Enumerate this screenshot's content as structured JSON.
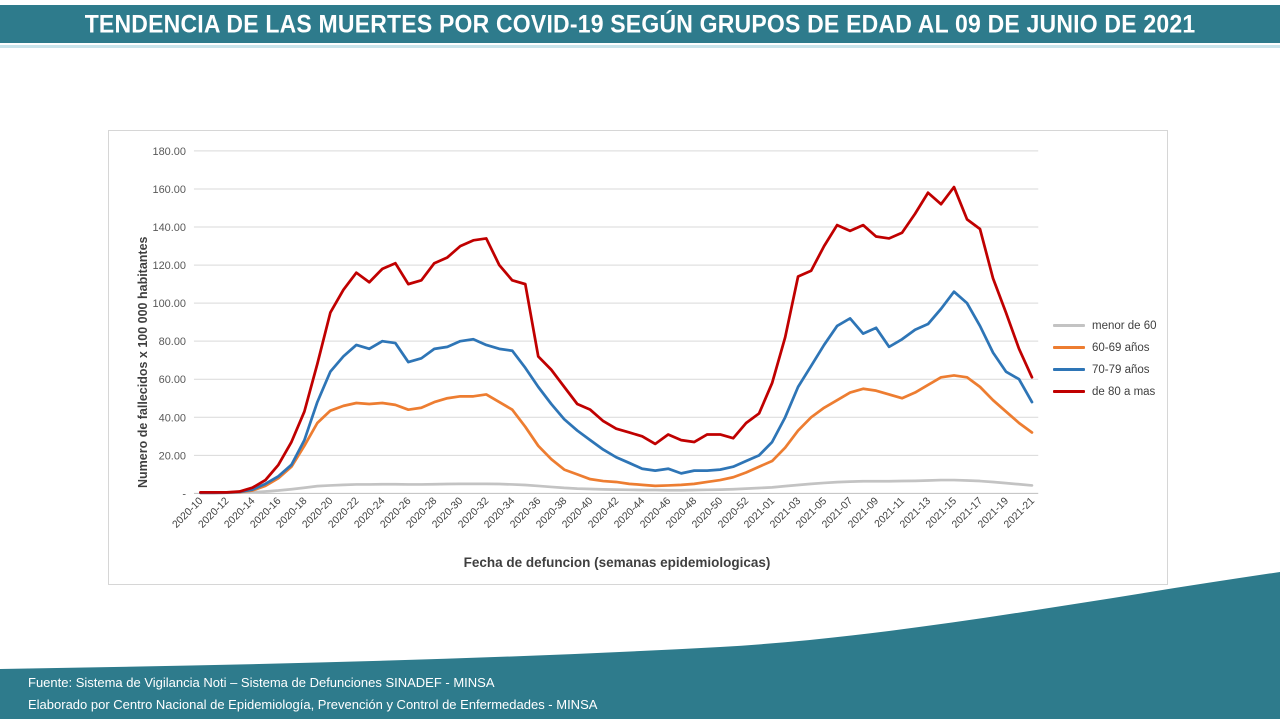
{
  "header": {
    "title": "TENDENCIA DE LAS MUERTES POR COVID-19 SEGÚN GRUPOS DE EDAD AL 09 DE JUNIO DE 2021"
  },
  "footer": {
    "line1": "Fuente: Sistema de Vigilancia Noti – Sistema de Defunciones SINADEF - MINSA",
    "line2": "Elaborado por Centro Nacional de Epidemiología, Prevención y Control de Enfermedades - MINSA"
  },
  "colors": {
    "teal": "#2E7B8C",
    "teal_light": "#C9E4EB",
    "gridline": "#D9D9D9",
    "axis_line": "#BFBFBF",
    "axis_tick_text": "#595959",
    "x_tick_text": "#404040",
    "axis_title_text": "#3F3F3F",
    "panel_border": "#D6D6D6"
  },
  "chart_data": {
    "type": "line",
    "title": "",
    "xlabel": "Fecha de defuncion (semanas epidemiologicas)",
    "ylabel": "Numero de fallecidos x 100 000 habitantes",
    "ylim": [
      0,
      180
    ],
    "y_tick_step": 20,
    "y_tick_labels": [
      "-",
      "20.00",
      "40.00",
      "60.00",
      "80.00",
      "100.00",
      "120.00",
      "140.00",
      "160.00",
      "180.00"
    ],
    "grid": true,
    "legend_position": "right",
    "x_tick_every": 2,
    "categories": [
      "2020-10",
      "2020-11",
      "2020-12",
      "2020-13",
      "2020-14",
      "2020-15",
      "2020-16",
      "2020-17",
      "2020-18",
      "2020-19",
      "2020-20",
      "2020-21",
      "2020-22",
      "2020-23",
      "2020-24",
      "2020-25",
      "2020-26",
      "2020-27",
      "2020-28",
      "2020-29",
      "2020-30",
      "2020-31",
      "2020-32",
      "2020-33",
      "2020-34",
      "2020-35",
      "2020-36",
      "2020-37",
      "2020-38",
      "2020-39",
      "2020-40",
      "2020-41",
      "2020-42",
      "2020-43",
      "2020-44",
      "2020-45",
      "2020-46",
      "2020-47",
      "2020-48",
      "2020-49",
      "2020-50",
      "2020-51",
      "2020-52",
      "2020-53",
      "2021-01",
      "2021-02",
      "2021-03",
      "2021-04",
      "2021-05",
      "2021-06",
      "2021-07",
      "2021-08",
      "2021-09",
      "2021-10",
      "2021-11",
      "2021-12",
      "2021-13",
      "2021-14",
      "2021-15",
      "2021-16",
      "2021-17",
      "2021-18",
      "2021-19",
      "2021-20",
      "2021-21"
    ],
    "series": [
      {
        "name": "menor de 60",
        "color": "#C3C3C3",
        "values": [
          0.2,
          0.2,
          0.3,
          0.4,
          0.6,
          1,
          1.5,
          2.2,
          3,
          3.8,
          4.2,
          4.5,
          4.7,
          4.7,
          4.8,
          4.8,
          4.7,
          4.7,
          4.8,
          4.9,
          5,
          5,
          5,
          4.9,
          4.7,
          4.4,
          3.9,
          3.4,
          2.9,
          2.5,
          2.3,
          2.1,
          2,
          1.9,
          1.8,
          1.8,
          1.7,
          1.7,
          1.8,
          1.9,
          2,
          2.2,
          2.5,
          2.8,
          3.2,
          3.8,
          4.4,
          5,
          5.5,
          5.9,
          6.2,
          6.4,
          6.4,
          6.4,
          6.5,
          6.6,
          6.8,
          7,
          7,
          6.8,
          6.5,
          6,
          5.4,
          4.8,
          4.2
        ]
      },
      {
        "name": "60-69 años",
        "color": "#ED7D31",
        "values": [
          0.3,
          0.3,
          0.4,
          0.7,
          1.5,
          4,
          8,
          14,
          25,
          37,
          43.5,
          46,
          47.5,
          47,
          47.5,
          46.5,
          44,
          45,
          48,
          50,
          51,
          51,
          52,
          48,
          44,
          35,
          25,
          18,
          12.5,
          10,
          7.5,
          6.5,
          6,
          5,
          4.5,
          4,
          4.2,
          4.5,
          5,
          6,
          7,
          8.5,
          11,
          14,
          17,
          24,
          33,
          40,
          45,
          49,
          53,
          55,
          54,
          52,
          50,
          53,
          57,
          61,
          62,
          61,
          56,
          49,
          43,
          37,
          32
        ]
      },
      {
        "name": "70-79 años",
        "color": "#2E75B6",
        "values": [
          0.3,
          0.3,
          0.4,
          0.8,
          2,
          5,
          9,
          15,
          28,
          48,
          64,
          72,
          78,
          76,
          80,
          79,
          69,
          71,
          76,
          77,
          80,
          81,
          78,
          76,
          75,
          66,
          56,
          47,
          39,
          33,
          28,
          23,
          19,
          16,
          13,
          12,
          13,
          10.5,
          12,
          12,
          12.5,
          14,
          17,
          20,
          27,
          40,
          56,
          67,
          78,
          88,
          92,
          84,
          87,
          77,
          81,
          86,
          89,
          97,
          106,
          100,
          88,
          74,
          64,
          60,
          48
        ]
      },
      {
        "name": "de 80 a mas",
        "color": "#C00000",
        "values": [
          0.5,
          0.5,
          0.5,
          1,
          3,
          7,
          15,
          27,
          43,
          68,
          95,
          107,
          116,
          111,
          118,
          121,
          110,
          112,
          121,
          124,
          130,
          133,
          134,
          120,
          112,
          110,
          72,
          65,
          56,
          47,
          44,
          38,
          34,
          32,
          30,
          26,
          31,
          28,
          27,
          31,
          31,
          29,
          37,
          42,
          58,
          82,
          114,
          117,
          130,
          141,
          138,
          141,
          135,
          134,
          137,
          147,
          158,
          152,
          161,
          144,
          139,
          113,
          95,
          76,
          61
        ]
      }
    ]
  }
}
